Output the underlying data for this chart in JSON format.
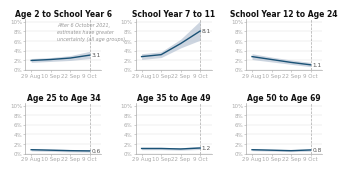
{
  "panels": [
    {
      "title": "Age 2 to School Year 6",
      "line": [
        2.0,
        2.2,
        2.5,
        3.1
      ],
      "lower": [
        1.6,
        1.8,
        2.0,
        2.4
      ],
      "upper": [
        2.4,
        2.6,
        3.0,
        3.9
      ],
      "end_label": "3.1",
      "annotation": "After 6 October 2021,\nestimates have greater\nuncertainty (all age groups)."
    },
    {
      "title": "School Year 7 to 11",
      "line": [
        2.8,
        3.2,
        5.5,
        8.1
      ],
      "lower": [
        2.2,
        2.6,
        4.6,
        6.2
      ],
      "upper": [
        3.4,
        3.8,
        6.4,
        10.2
      ],
      "end_label": "8.1",
      "annotation": null
    },
    {
      "title": "School Year 12 to Age 24",
      "line": [
        2.8,
        2.2,
        1.6,
        1.1
      ],
      "lower": [
        2.2,
        1.7,
        1.2,
        0.7
      ],
      "upper": [
        3.4,
        2.7,
        2.1,
        1.6
      ],
      "end_label": "1.1",
      "annotation": null
    },
    {
      "title": "Age 25 to Age 34",
      "line": [
        0.85,
        0.75,
        0.65,
        0.6
      ],
      "lower": [
        0.6,
        0.5,
        0.4,
        0.35
      ],
      "upper": [
        1.1,
        1.0,
        0.9,
        0.85
      ],
      "end_label": "0.6",
      "annotation": null
    },
    {
      "title": "Age 35 to Age 49",
      "line": [
        1.1,
        1.1,
        1.0,
        1.2
      ],
      "lower": [
        0.85,
        0.85,
        0.75,
        0.9
      ],
      "upper": [
        1.35,
        1.35,
        1.25,
        1.55
      ],
      "end_label": "1.2",
      "annotation": null
    },
    {
      "title": "Age 50 to Age 69",
      "line": [
        0.85,
        0.75,
        0.65,
        0.8
      ],
      "lower": [
        0.65,
        0.55,
        0.45,
        0.55
      ],
      "upper": [
        1.05,
        0.95,
        0.85,
        1.05
      ],
      "end_label": "0.8",
      "annotation": null
    }
  ],
  "xtick_labels": [
    "29 Aug",
    "10 Sep",
    "22 Sep",
    "9 Oct"
  ],
  "ytick_labels": [
    "0%",
    "2%",
    "4%",
    "6%",
    "8%",
    "10%"
  ],
  "ytick_values": [
    0,
    2,
    4,
    6,
    8,
    10
  ],
  "ylim": [
    0,
    10.5
  ],
  "line_color": "#1a5276",
  "band_color": "#b8c4d4",
  "vline_color": "#aaaaaa",
  "label_color": "#555555",
  "background_color": "#ffffff",
  "title_fontsize": 5.5,
  "tick_fontsize": 4.0,
  "label_fontsize": 4.2,
  "annotation_fontsize": 3.5
}
